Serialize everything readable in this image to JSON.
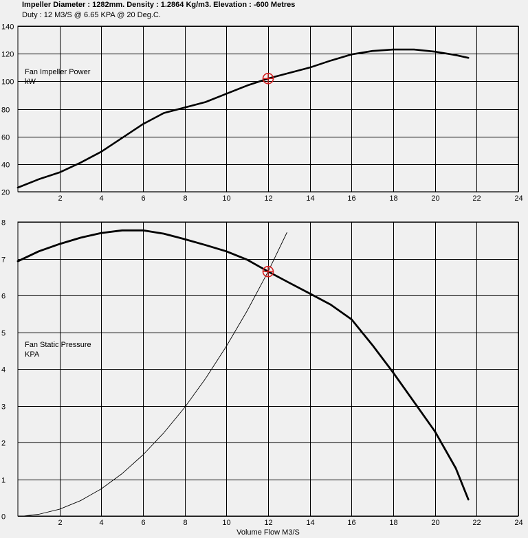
{
  "header": {
    "line1": "Impeller Diameter : 1282mm.  Density : 1.2864 Kg/m3. Elevation : -600 Metres",
    "line2": "Duty : 12 M3/S @ 6.65 KPA @ 20 Deg.C."
  },
  "colors": {
    "curve": "#000000",
    "grid": "#000000",
    "background": "#f0f0f0",
    "marker": "#d42020"
  },
  "chart_data": [
    {
      "type": "line",
      "title": "",
      "ylabel_lines": [
        "Fan Impeller Power",
        "kW"
      ],
      "xlabel": "",
      "xlim": [
        0,
        24
      ],
      "ylim": [
        20,
        140
      ],
      "x_ticks": [
        2,
        4,
        6,
        8,
        10,
        12,
        14,
        16,
        18,
        20,
        22,
        24
      ],
      "y_ticks": [
        20,
        40,
        60,
        80,
        100,
        120,
        140
      ],
      "grid": true,
      "series": [
        {
          "x": [
            0,
            1,
            2,
            3,
            4,
            5,
            6,
            7,
            8,
            9,
            10,
            11,
            12,
            13,
            14,
            15,
            16,
            17,
            18,
            19,
            20,
            21,
            21.6
          ],
          "y": [
            23,
            29,
            34,
            41,
            49,
            59,
            69,
            77,
            81,
            85,
            91,
            97,
            102,
            106,
            110,
            115,
            119.5,
            122,
            123,
            123,
            121.5,
            119,
            117
          ]
        }
      ],
      "duty_point": {
        "x": 12,
        "y": 102
      }
    },
    {
      "type": "line",
      "title": "",
      "ylabel_lines": [
        "Fan Static Pressure",
        "KPA"
      ],
      "xlabel": "Volume Flow M3/S",
      "xlim": [
        0,
        24
      ],
      "ylim": [
        0,
        8
      ],
      "x_ticks": [
        2,
        4,
        6,
        8,
        10,
        12,
        14,
        16,
        18,
        20,
        22,
        24
      ],
      "y_ticks": [
        0,
        1,
        2,
        3,
        4,
        5,
        6,
        7,
        8
      ],
      "grid": true,
      "series": [
        {
          "x": [
            0,
            1,
            2,
            3,
            4,
            5,
            6,
            7,
            8,
            9,
            10,
            11,
            12,
            13,
            14,
            15,
            16,
            17,
            18,
            19,
            20,
            21,
            21.6
          ],
          "y": [
            6.93,
            7.2,
            7.4,
            7.57,
            7.7,
            7.77,
            7.77,
            7.68,
            7.53,
            7.37,
            7.2,
            6.97,
            6.65,
            6.35,
            6.05,
            5.75,
            5.35,
            4.65,
            3.9,
            3.1,
            2.3,
            1.3,
            0.45
          ]
        },
        {
          "x": [
            0.3,
            1,
            2,
            3,
            4,
            5,
            6,
            7,
            8,
            9,
            10,
            11,
            12,
            12.9
          ],
          "y": [
            0,
            0.046,
            0.185,
            0.416,
            0.739,
            1.155,
            1.663,
            2.263,
            2.956,
            3.741,
            4.618,
            5.588,
            6.65,
            7.71
          ]
        }
      ],
      "duty_point": {
        "x": 12,
        "y": 6.65
      }
    }
  ]
}
